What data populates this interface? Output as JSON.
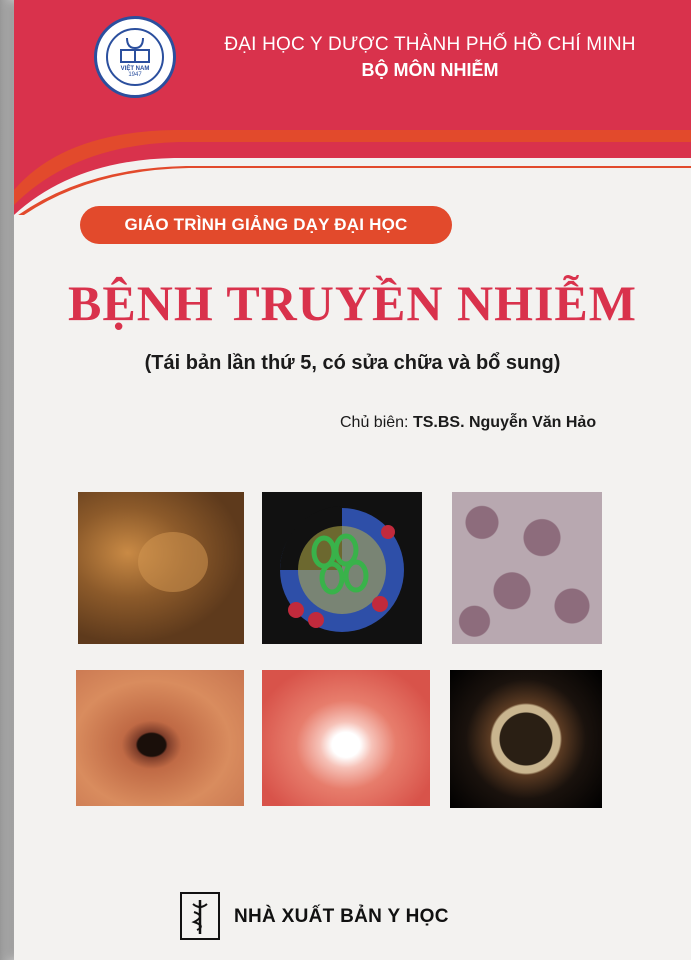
{
  "header": {
    "university": "ĐẠI HỌC Y DƯỢC THÀNH PHỐ HỒ CHÍ MINH",
    "department": "BỘ MÔN NHIỄM",
    "logo": {
      "ring_text": "ĐẠI HỌC Y DƯỢC THÀNH PHỐ HỒ CHÍ MINH",
      "country": "VIỆT NAM",
      "year": "1947"
    }
  },
  "series_label": "GIÁO TRÌNH GIẢNG DẠY ĐẠI HỌC",
  "title": "BỆNH TRUYỀN NHIỄM",
  "subtitle": "(Tái bản lần thứ 5, có sửa chữa và bổ sung)",
  "editor": {
    "label": "Chủ biên:",
    "name": "TS.BS. Nguyễn Văn Hảo"
  },
  "publisher": {
    "name": "NHÀ XUẤT BẢN Y HỌC",
    "icon": "caduceus-icon"
  },
  "colors": {
    "band": "#d9324c",
    "orange": "#e24a2c",
    "title": "#d9324c",
    "logo_blue": "#2b4f9e"
  }
}
